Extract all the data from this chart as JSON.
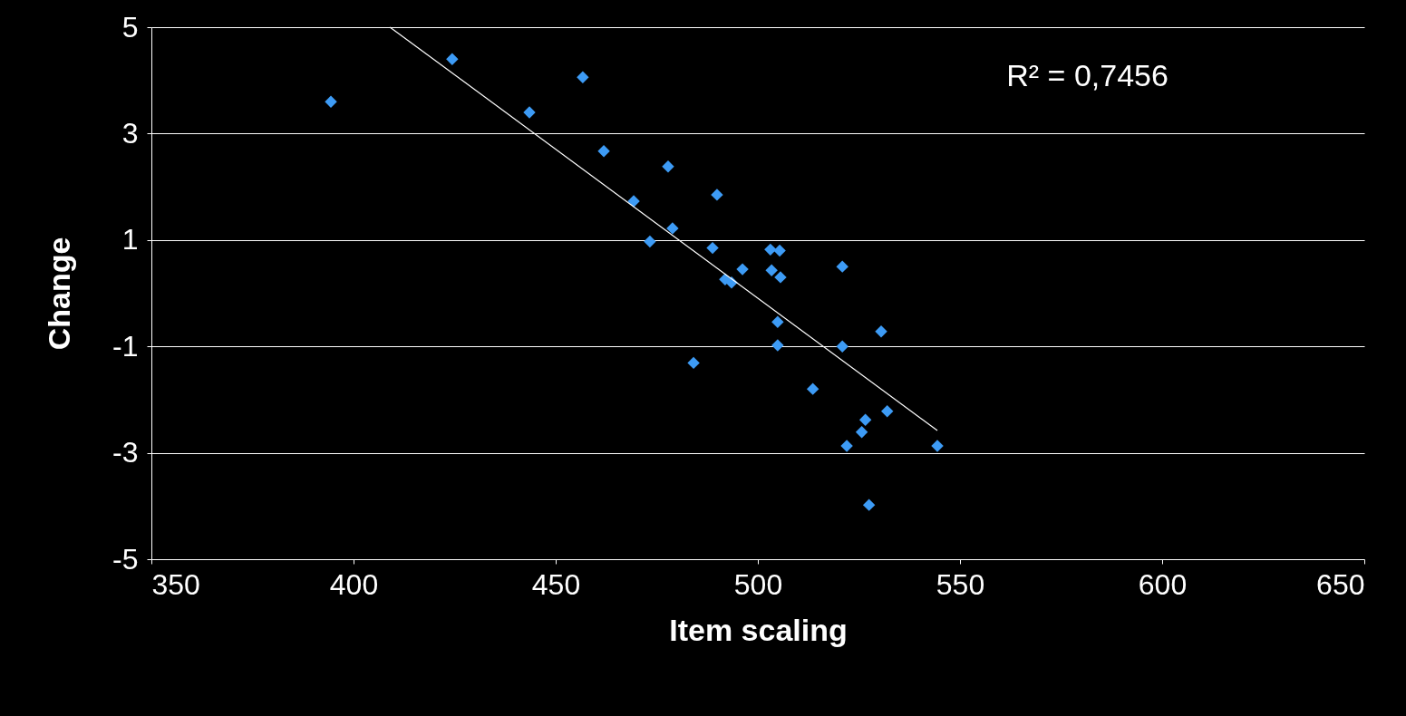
{
  "chart_data": {
    "type": "scatter",
    "xlabel": "Item scaling",
    "ylabel": "Change",
    "xlim": [
      350,
      650
    ],
    "ylim": [
      -5,
      5
    ],
    "xticks": [
      350,
      400,
      450,
      500,
      550,
      600,
      650
    ],
    "yticks": [
      -5,
      -3,
      -1,
      1,
      3,
      5
    ],
    "grid": "y",
    "annotations": [
      "R² = 0,7456"
    ],
    "series": [
      {
        "marker": "diamond",
        "color": "#3d9bf5",
        "x": [
          394.4,
          424.4,
          456.7,
          443.5,
          461.9,
          477.8,
          469.3,
          489.9,
          478.9,
          473.3,
          488.8,
          503.1,
          505.4,
          496.2,
          503.4,
          505.6,
          491.9,
          493.5,
          520.9,
          504.9,
          504.9,
          520.9,
          530.5,
          484.1,
          513.6,
          526.6,
          532.0,
          525.7,
          522.0,
          544.4,
          527.5
        ],
        "values": [
          3.6,
          4.4,
          4.06,
          3.4,
          2.67,
          2.38,
          1.73,
          1.85,
          1.22,
          0.97,
          0.85,
          0.82,
          0.8,
          0.45,
          0.43,
          0.3,
          0.26,
          0.2,
          0.5,
          -0.54,
          -0.98,
          -1.0,
          -0.72,
          -1.31,
          -1.8,
          -2.38,
          -2.22,
          -2.61,
          -2.87,
          -2.87,
          -3.98
        ]
      },
      {
        "type": "line",
        "color": "#ffffff",
        "x": [
          409,
          544.4
        ],
        "values": [
          5,
          -2.58
        ]
      }
    ]
  }
}
